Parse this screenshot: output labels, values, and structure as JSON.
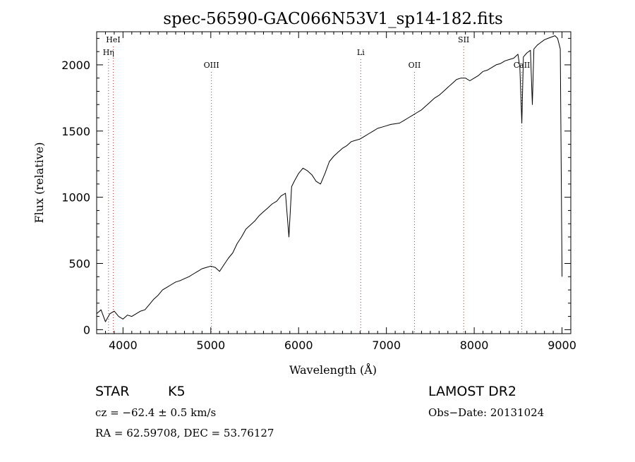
{
  "chart_data": {
    "type": "line",
    "title": "spec-56590-GAC066N53V1_sp14-182.fits",
    "xlabel": "Wavelength (Å)",
    "ylabel": "Flux (relative)",
    "xlim": [
      3700,
      9100
    ],
    "ylim": [
      -30,
      2250
    ],
    "x_ticks": [
      4000,
      5000,
      6000,
      7000,
      8000,
      9000
    ],
    "y_ticks": [
      0,
      500,
      1000,
      1500,
      2000
    ],
    "x_tick_labels": [
      "4000",
      "5000",
      "6000",
      "7000",
      "8000",
      "9000"
    ],
    "y_tick_labels": [
      "0",
      "500",
      "1000",
      "1500",
      "2000"
    ],
    "series": [
      {
        "x": [
          3700,
          3750,
          3800,
          3850,
          3900,
          3950,
          4000,
          4050,
          4100,
          4150,
          4200,
          4250,
          4300,
          4350,
          4400,
          4450,
          4500,
          4550,
          4600,
          4650,
          4700,
          4750,
          4800,
          4850,
          4900,
          4950,
          5000,
          5050,
          5100,
          5150,
          5200,
          5250,
          5300,
          5350,
          5400,
          5450,
          5500,
          5550,
          5600,
          5650,
          5700,
          5750,
          5800,
          5850,
          5890,
          5920,
          5950,
          6000,
          6050,
          6100,
          6150,
          6200,
          6250,
          6300,
          6350,
          6400,
          6450,
          6500,
          6550,
          6600,
          6650,
          6700,
          6750,
          6800,
          6850,
          6900,
          6950,
          7000,
          7050,
          7100,
          7150,
          7200,
          7250,
          7300,
          7350,
          7400,
          7450,
          7500,
          7550,
          7600,
          7650,
          7700,
          7750,
          7800,
          7850,
          7900,
          7950,
          8000,
          8050,
          8100,
          8150,
          8200,
          8250,
          8300,
          8350,
          8400,
          8450,
          8498,
          8520,
          8542,
          8560,
          8600,
          8640,
          8662,
          8680,
          8720,
          8760,
          8800,
          8840,
          8880,
          8920,
          8950,
          8980,
          9000
        ],
        "y": [
          120,
          150,
          60,
          120,
          140,
          100,
          80,
          110,
          100,
          120,
          140,
          150,
          190,
          230,
          260,
          300,
          320,
          340,
          360,
          370,
          385,
          400,
          420,
          440,
          460,
          470,
          480,
          470,
          440,
          490,
          540,
          580,
          650,
          700,
          760,
          790,
          820,
          860,
          890,
          920,
          950,
          970,
          1010,
          1030,
          700,
          1080,
          1120,
          1180,
          1220,
          1200,
          1170,
          1120,
          1100,
          1180,
          1270,
          1310,
          1340,
          1370,
          1390,
          1420,
          1430,
          1440,
          1460,
          1480,
          1500,
          1520,
          1530,
          1540,
          1550,
          1555,
          1560,
          1580,
          1600,
          1620,
          1640,
          1660,
          1690,
          1720,
          1750,
          1770,
          1800,
          1830,
          1860,
          1890,
          1900,
          1900,
          1880,
          1900,
          1920,
          1950,
          1960,
          1980,
          2000,
          2010,
          2030,
          2040,
          2050,
          2080,
          1980,
          1560,
          2060,
          2090,
          2110,
          1700,
          2120,
          2150,
          2170,
          2190,
          2200,
          2210,
          2220,
          2200,
          2120,
          400
        ]
      }
    ],
    "annotations": [
      {
        "label": "HeI",
        "x": 3889,
        "row": 0
      },
      {
        "label": "Hη",
        "x": 3835,
        "row": 1
      },
      {
        "label": "OIII",
        "x": 5007,
        "row": 2
      },
      {
        "label": "Li",
        "x": 6708,
        "row": 1
      },
      {
        "label": "OII",
        "x": 7320,
        "row": 2
      },
      {
        "label": "SII",
        "x": 7880,
        "row": 0
      },
      {
        "label": "CaII",
        "x": 8542,
        "row": 2
      }
    ]
  },
  "info": {
    "object_type": "STAR",
    "subclass": "K5",
    "survey": "LAMOST DR2",
    "cz": "cz = −62.4 ± 0.5 km/s",
    "obs_date": "Obs−Date: 20131024",
    "coords": "RA =  62.59708, DEC =  53.76127"
  }
}
